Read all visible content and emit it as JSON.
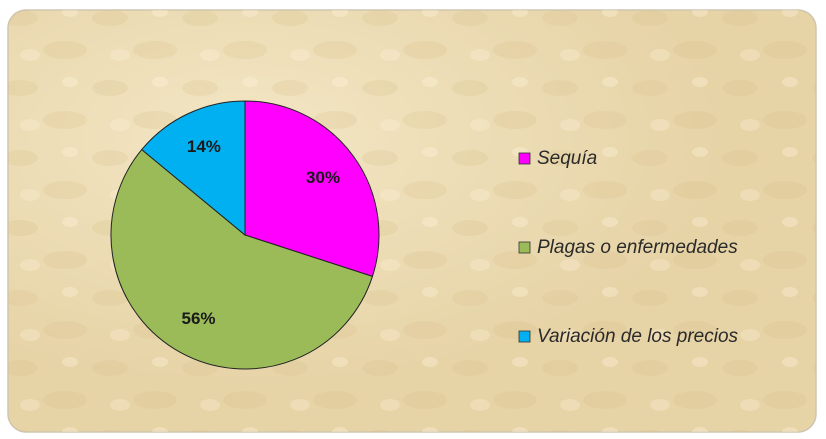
{
  "chart_data": {
    "type": "pie",
    "categories": [
      "Sequía",
      "Plagas o enfermedades",
      "Variación de los precios"
    ],
    "values": [
      30,
      56,
      14
    ],
    "value_labels": [
      "30%",
      "56%",
      "14%"
    ],
    "colors": [
      "#ff00ff",
      "#9bbb59",
      "#00b0f0"
    ],
    "legend": "right"
  }
}
